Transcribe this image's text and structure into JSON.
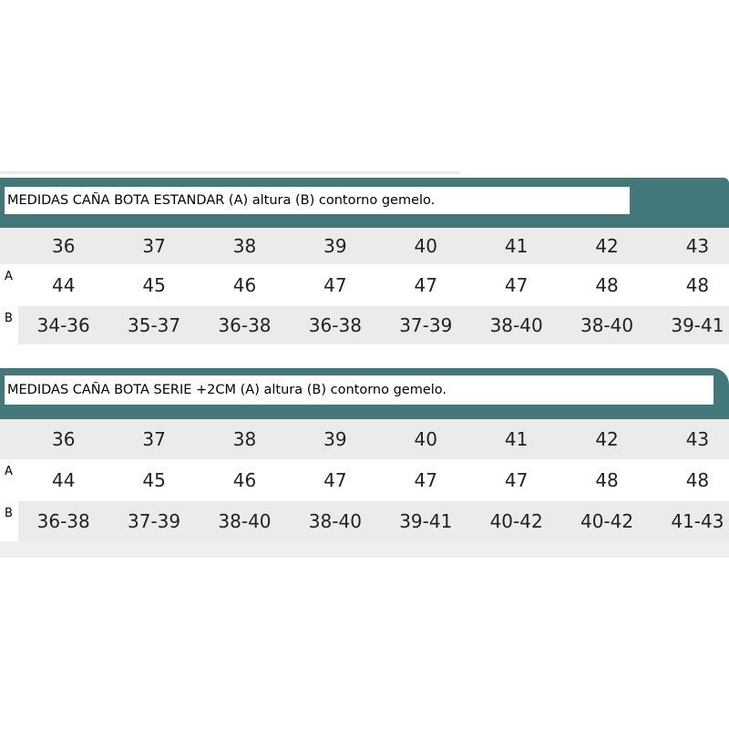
{
  "tables": [
    {
      "title": "MEDIDAS CAÑA BOTA ESTANDAR (A) altura (B) contorno gemelo.",
      "sizes": [
        "36",
        "37",
        "38",
        "39",
        "40",
        "41",
        "42",
        "43"
      ],
      "row_a_label": "A",
      "row_a": [
        "44",
        "45",
        "46",
        "47",
        "47",
        "47",
        "48",
        "48"
      ],
      "row_b_label": "B",
      "row_b": [
        "34-36",
        "35-37",
        "36-38",
        "36-38",
        "37-39",
        "38-40",
        "38-40",
        "39-41"
      ]
    },
    {
      "title": "MEDIDAS CAÑA BOTA SERIE +2CM (A) altura (B) contorno gemelo.",
      "sizes": [
        "36",
        "37",
        "38",
        "39",
        "40",
        "41",
        "42",
        "43"
      ],
      "row_a_label": "A",
      "row_a": [
        "44",
        "45",
        "46",
        "47",
        "47",
        "47",
        "48",
        "48"
      ],
      "row_b_label": "B",
      "row_b": [
        "36-38",
        "37-39",
        "38-40",
        "38-40",
        "39-41",
        "40-42",
        "40-42",
        "41-43"
      ]
    }
  ],
  "colors": {
    "header": "#43787b",
    "shade": "#ebebeb"
  }
}
